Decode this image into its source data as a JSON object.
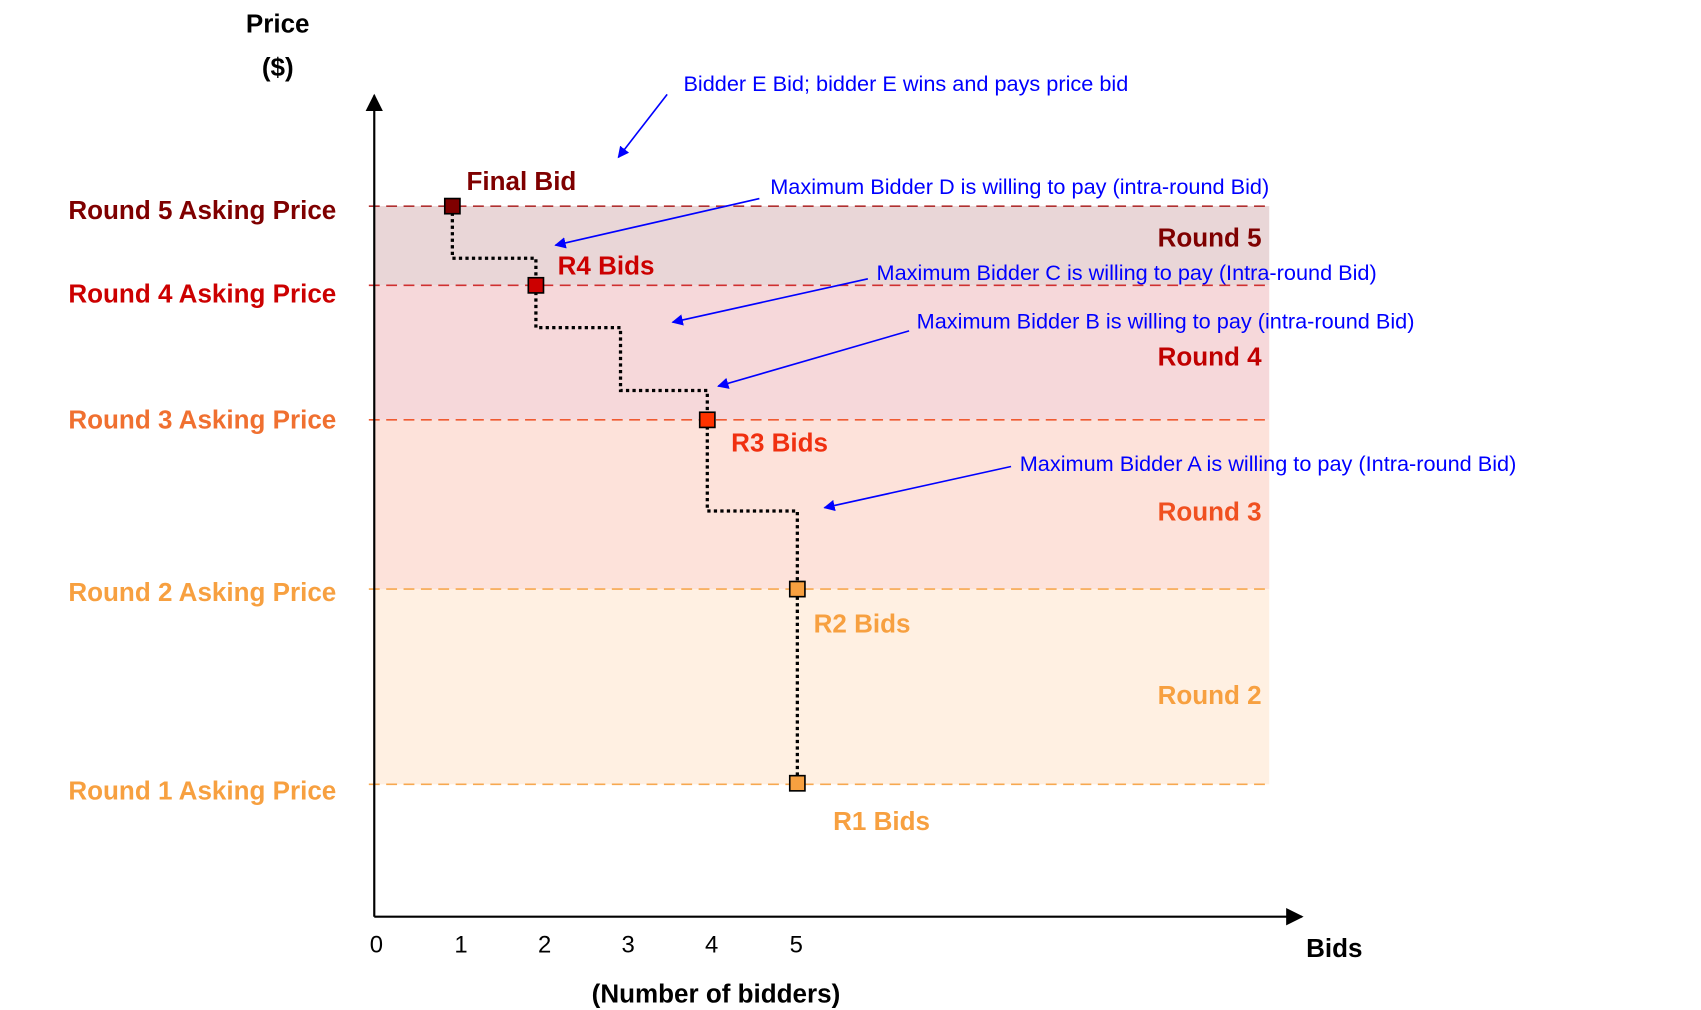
{
  "axis": {
    "y_label": [
      "Price",
      "($)"
    ],
    "x_label": "Bids",
    "x_sublabel": "(Number of bidders)",
    "x_ticks": [
      "0",
      "1",
      "2",
      "3",
      "4",
      "5"
    ]
  },
  "asking_prices": [
    "Round 5 Asking Price",
    "Round 4 Asking Price",
    "Round 3 Asking Price",
    "Round 2 Asking Price",
    "Round 1 Asking Price"
  ],
  "rounds": [
    "Round 5",
    "Round 4",
    "Round 3",
    "Round 2"
  ],
  "bids": [
    "Final Bid",
    "R4 Bids",
    "R3 Bids",
    "R2 Bids",
    "R1 Bids"
  ],
  "annotations": [
    "Bidder E Bid; bidder E wins and pays price bid",
    "Maximum Bidder D is willing to pay (intra-round Bid)",
    "Maximum Bidder C is willing to pay (Intra-round Bid)",
    "Maximum Bidder B is willing to pay (intra-round Bid)",
    "Maximum Bidder A is willing to pay (Intra-round Bid)"
  ]
}
